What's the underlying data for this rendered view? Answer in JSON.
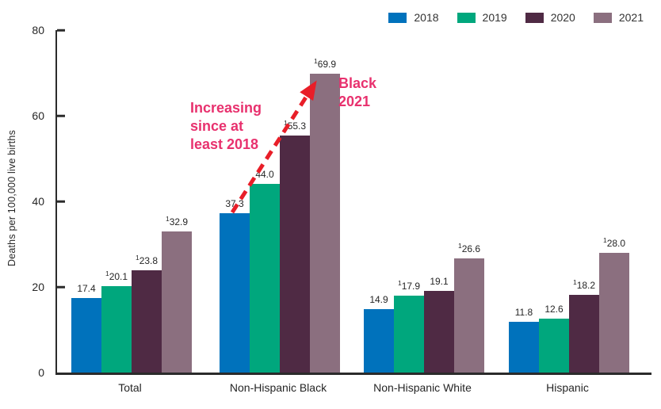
{
  "chart_data": {
    "type": "bar",
    "categories": [
      "Total",
      "Non-Hispanic Black",
      "Non-Hispanic White",
      "Hispanic"
    ],
    "series": [
      {
        "name": "2018",
        "color": "#0072BC",
        "values": [
          17.4,
          37.3,
          14.9,
          11.8
        ],
        "flagged": [
          false,
          false,
          false,
          false
        ]
      },
      {
        "name": "2019",
        "color": "#00A77D",
        "values": [
          20.1,
          44.0,
          17.9,
          12.6
        ],
        "flagged": [
          true,
          false,
          true,
          false
        ]
      },
      {
        "name": "2020",
        "color": "#4F2A44",
        "values": [
          23.8,
          55.3,
          19.1,
          18.2
        ],
        "flagged": [
          true,
          true,
          false,
          true
        ]
      },
      {
        "name": "2021",
        "color": "#8B6F7F",
        "values": [
          32.9,
          69.9,
          26.6,
          28.0
        ],
        "flagged": [
          true,
          true,
          true,
          true
        ]
      }
    ],
    "title": "",
    "xlabel": "",
    "ylabel": "Deaths per 100,000 live births",
    "ylim": [
      0,
      80
    ],
    "yticks": [
      0,
      20,
      40,
      60,
      80
    ],
    "grid": false,
    "legend_position": "top-right",
    "legend_entries": [
      "2018",
      "2019",
      "2020",
      "2021"
    ],
    "flag_marker": "1",
    "value_label_decimals": 1
  },
  "annotations": {
    "increasing_note": {
      "text": "Increasing since at least 2018",
      "lines": [
        "Increasing",
        "since at",
        "least 2018"
      ],
      "color": "#E8316E"
    },
    "black_2021_label": {
      "text": "Black 2021",
      "lines": [
        "Black",
        "2021"
      ],
      "color": "#E8316E"
    },
    "arrow": {
      "color": "#E81E28",
      "style": "dashed",
      "from": "top of Non-Hispanic Black 2018 bar",
      "to": "top of Non-Hispanic Black 2021 bar"
    }
  },
  "axis": {
    "line_color": "#2b2b2b",
    "text_color": "#262626"
  }
}
